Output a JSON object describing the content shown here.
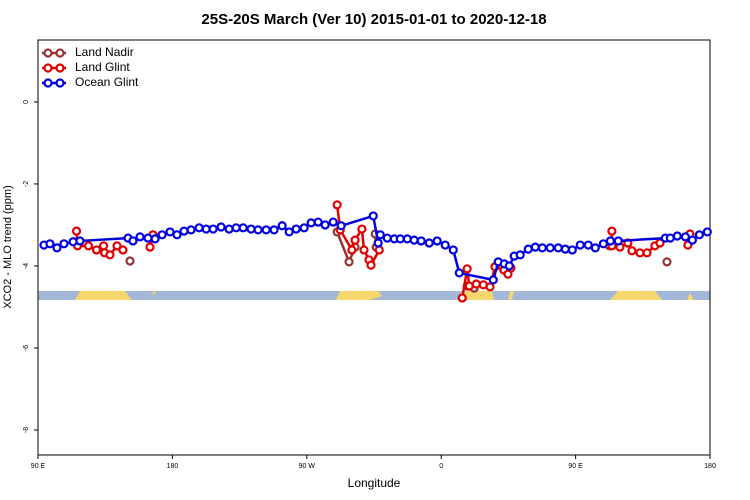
{
  "chart_data": {
    "type": "line",
    "title": "25S-20S March (Ver 10)   2015-01-01 to 2020-12-18",
    "x_label": "Longitude",
    "y_label": "XCO2 - MLO trend (ppm)",
    "xlim": [
      90,
      540
    ],
    "ylim": [
      -8.61,
      1.51
    ],
    "xticks": [
      {
        "value": 90,
        "label": "90 E"
      },
      180,
      {
        "value": 270,
        "label": "90 W"
      },
      {
        "value": 360,
        "label": "0"
      },
      {
        "value": 450,
        "label": "90 E"
      },
      {
        "value": 540,
        "label": "180"
      }
    ],
    "yticks": [
      0,
      -2,
      -4,
      -6,
      -8
    ],
    "legend": "top-left",
    "series": [
      {
        "name": "Land Nadir",
        "color": "#993333",
        "x": [
          151.6,
          null,
          290.3,
          298.3,
          302.3,
          null,
          315.8,
          316.5,
          null,
          377.4,
          382.1,
          null,
          472.6,
          null,
          511.2
        ],
        "values": [
          -3.88,
          null,
          -3.17,
          -3.9,
          -3.54,
          null,
          -3.22,
          -3.54,
          null,
          -4.49,
          -4.54,
          null,
          -3.51,
          null,
          -3.9
        ]
      },
      {
        "name": "Land Glint",
        "color": "#e00000",
        "x": [
          115.8,
          116.5,
          123.8,
          129.2,
          133.9,
          134.6,
          138.2,
          142.9,
          146.9,
          null,
          165.0,
          167.0,
          null,
          290.3,
          292.4,
          300.2,
          302.3,
          306.9,
          308.3,
          311.6,
          313.0,
          318.5,
          null,
          374.1,
          377.4,
          378.8,
          383.5,
          388.2,
          392.7,
          396.0,
          402.0,
          404.7,
          406.7,
          null,
          474.3,
          474.3,
          479.7,
          485.0,
          487.7,
          493.1,
          497.8,
          503.1,
          506.5,
          null,
          525.2,
          526.6
        ],
        "values": [
          -3.15,
          -3.51,
          -3.51,
          -3.61,
          -3.51,
          -3.68,
          -3.73,
          -3.51,
          -3.61,
          null,
          -3.54,
          -3.24,
          null,
          -2.51,
          -3.12,
          -3.61,
          -3.37,
          -3.1,
          -3.61,
          -3.85,
          -3.98,
          -3.61,
          null,
          -4.78,
          -4.07,
          -4.49,
          -4.44,
          -4.46,
          -4.51,
          -4.02,
          -4.1,
          -4.2,
          -4.05,
          null,
          -3.15,
          -3.51,
          -3.54,
          -3.44,
          -3.63,
          -3.68,
          -3.68,
          -3.51,
          -3.44,
          null,
          -3.49,
          -3.22
        ]
      },
      {
        "name": "Ocean Glint",
        "color": "#0000e0",
        "x": [
          94.0,
          98.0,
          102.7,
          107.4,
          113.5,
          118.1,
          150.3,
          153.6,
          158.3,
          163.7,
          168.4,
          173.1,
          178.4,
          183.1,
          187.8,
          192.5,
          197.9,
          202.6,
          207.3,
          212.6,
          218.0,
          222.7,
          227.4,
          232.7,
          237.4,
          242.8,
          248.1,
          253.5,
          258.2,
          262.9,
          268.2,
          272.9,
          277.6,
          282.3,
          287.7,
          293.0,
          314.5,
          317.8,
          319.2,
          323.9,
          328.6,
          332.6,
          337.3,
          341.9,
          346.6,
          352.0,
          357.3,
          362.7,
          368.1,
          372.1,
          394.9,
          398.2,
          402.2,
          405.6,
          408.9,
          412.9,
          418.3,
          423.0,
          427.7,
          433.0,
          438.4,
          443.1,
          447.8,
          453.1,
          458.5,
          463.2,
          468.6,
          473.3,
          478.6,
          510.1,
          513.4,
          518.1,
          523.5,
          528.2,
          532.9,
          538.2
        ],
        "values": [
          -3.49,
          -3.46,
          -3.56,
          -3.46,
          -3.41,
          -3.39,
          -3.32,
          -3.39,
          -3.29,
          -3.32,
          -3.34,
          -3.24,
          -3.17,
          -3.24,
          -3.15,
          -3.12,
          -3.07,
          -3.1,
          -3.1,
          -3.05,
          -3.1,
          -3.07,
          -3.07,
          -3.1,
          -3.12,
          -3.12,
          -3.12,
          -3.02,
          -3.17,
          -3.1,
          -3.07,
          -2.95,
          -2.93,
          -3.0,
          -2.93,
          -3.02,
          -2.78,
          -3.44,
          -3.24,
          -3.32,
          -3.34,
          -3.34,
          -3.34,
          -3.37,
          -3.39,
          -3.44,
          -3.39,
          -3.49,
          -3.61,
          -4.17,
          -4.34,
          -3.9,
          -3.95,
          -4.0,
          -3.76,
          -3.73,
          -3.59,
          -3.54,
          -3.56,
          -3.56,
          -3.56,
          -3.59,
          -3.61,
          -3.49,
          -3.49,
          -3.56,
          -3.46,
          -3.39,
          -3.39,
          -3.32,
          -3.32,
          -3.27,
          -3.29,
          -3.37,
          -3.24,
          -3.17
        ]
      }
    ]
  }
}
